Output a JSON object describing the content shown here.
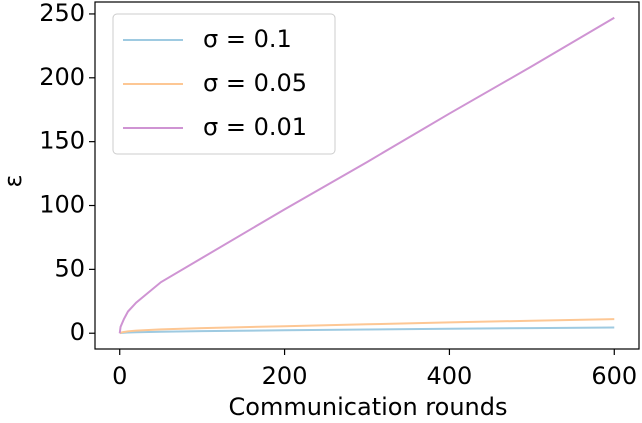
{
  "chart_data": {
    "type": "line",
    "xlabel": "Communication rounds",
    "ylabel": "ε",
    "x": [
      0,
      1,
      5,
      10,
      20,
      50,
      100,
      200,
      300,
      400,
      500,
      600
    ],
    "series": [
      {
        "name": "σ = 0.1",
        "color": "#9ecae1",
        "values": [
          0,
          0.2,
          0.4,
          0.6,
          0.8,
          1.2,
          1.6,
          2.3,
          2.9,
          3.5,
          4,
          4.5
        ]
      },
      {
        "name": "σ = 0.05",
        "color": "#fdc794",
        "values": [
          0,
          0.4,
          1,
          1.5,
          2,
          3,
          4,
          5.5,
          7,
          8.5,
          9.8,
          11
        ]
      },
      {
        "name": "σ = 0.01",
        "color": "#cf94d3",
        "values": [
          0,
          5,
          11,
          17,
          24,
          40,
          59,
          97,
          134,
          172,
          209,
          247
        ]
      }
    ],
    "xlim": [
      -30,
      630
    ],
    "ylim": [
      -12.35,
      259.35
    ],
    "xticks": [
      0,
      200,
      400,
      600
    ],
    "yticks": [
      0,
      50,
      100,
      150,
      200,
      250
    ],
    "legend": "upper left"
  }
}
